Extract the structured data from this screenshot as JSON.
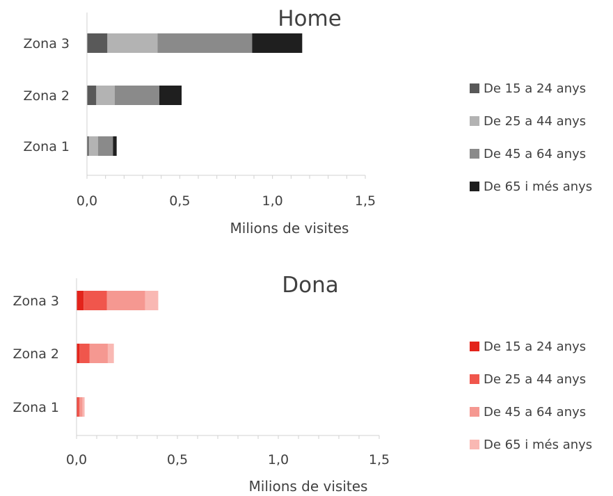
{
  "chart_data": [
    {
      "type": "bar",
      "orientation": "horizontal",
      "stacked": true,
      "title": "Home",
      "categories": [
        "Zona 1",
        "Zona 2",
        "Zona 3"
      ],
      "xlabel": "Milions de visites",
      "ylabel": "",
      "xlim": [
        0,
        1.5
      ],
      "xticks": [
        "0,0",
        "0,5",
        "1,0",
        "1,5"
      ],
      "legend_position": "right",
      "grid": false,
      "series": [
        {
          "name": "De 15 a 24 anys",
          "color": "#595959",
          "values": [
            0.01,
            0.05,
            0.11
          ]
        },
        {
          "name": "De 25 a 44 anys",
          "color": "#b3b3b3",
          "values": [
            0.05,
            0.1,
            0.27
          ]
        },
        {
          "name": "De 45 a 64 anys",
          "color": "#8a8a8a",
          "values": [
            0.08,
            0.24,
            0.51
          ]
        },
        {
          "name": "De 65 i més anys",
          "color": "#1f1f1f",
          "values": [
            0.02,
            0.12,
            0.27
          ]
        }
      ]
    },
    {
      "type": "bar",
      "orientation": "horizontal",
      "stacked": true,
      "title": "Dona",
      "categories": [
        "Zona 1",
        "Zona 2",
        "Zona 3"
      ],
      "xlabel": "Milions de visites",
      "ylabel": "",
      "xlim": [
        0,
        1.5
      ],
      "xticks": [
        "0,0",
        "0,5",
        "1,0",
        "1,5"
      ],
      "legend_position": "right",
      "grid": false,
      "series": [
        {
          "name": "De 15 a 24 anys",
          "color": "#e3241b",
          "values": [
            0.005,
            0.015,
            0.035
          ]
        },
        {
          "name": "De 25 a 44 anys",
          "color": "#f0564c",
          "values": [
            0.01,
            0.05,
            0.115
          ]
        },
        {
          "name": "De 45 a 64 anys",
          "color": "#f59891",
          "values": [
            0.015,
            0.09,
            0.19
          ]
        },
        {
          "name": "De 65 i més anys",
          "color": "#f9b8b3",
          "values": [
            0.01,
            0.03,
            0.065
          ]
        }
      ]
    }
  ]
}
